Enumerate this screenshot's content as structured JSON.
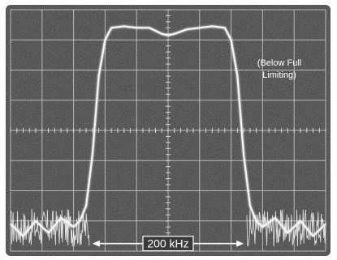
{
  "chart_data": {
    "type": "line",
    "title": "",
    "xlabel": "",
    "ylabel": "",
    "grid": true,
    "grid_divisions": {
      "x": 10,
      "y": 8
    },
    "xlim": [
      -500,
      500
    ],
    "ylim": [
      0,
      8
    ],
    "x_unit": "kHz",
    "series": [
      {
        "x": [
          -500,
          -460,
          -420,
          -380,
          -340,
          -300,
          -280,
          -260,
          -240,
          -220,
          -200,
          -180,
          -140,
          -100,
          -60,
          -20,
          0,
          20,
          60,
          100,
          140,
          180,
          200,
          220,
          240,
          260,
          280,
          300,
          340,
          380,
          420,
          460,
          500
        ],
        "values": [
          0.9,
          0.5,
          1.0,
          0.6,
          1.1,
          0.8,
          1.0,
          1.5,
          3.2,
          5.8,
          7.0,
          7.4,
          7.45,
          7.4,
          7.4,
          7.2,
          7.15,
          7.2,
          7.35,
          7.4,
          7.45,
          7.4,
          7.0,
          5.8,
          3.2,
          1.5,
          1.0,
          0.8,
          1.1,
          0.6,
          1.0,
          0.5,
          0.9
        ]
      }
    ],
    "annotations": [
      {
        "text": "(Below Full",
        "key": "below_full"
      },
      {
        "text": "Limiting)",
        "key": "limiting"
      },
      {
        "text": "200 kHz",
        "key": "bandwidth",
        "span_x": [
          -240,
          240
        ]
      }
    ]
  },
  "labels": {
    "below_full": "(Below Full",
    "limiting": "Limiting)",
    "bandwidth": "200 kHz"
  },
  "colors": {
    "screen_bg": "#3a3a3a",
    "grid": "#d8d8d8",
    "trace": "#f4f4f4",
    "bezel": "#ffffff"
  }
}
